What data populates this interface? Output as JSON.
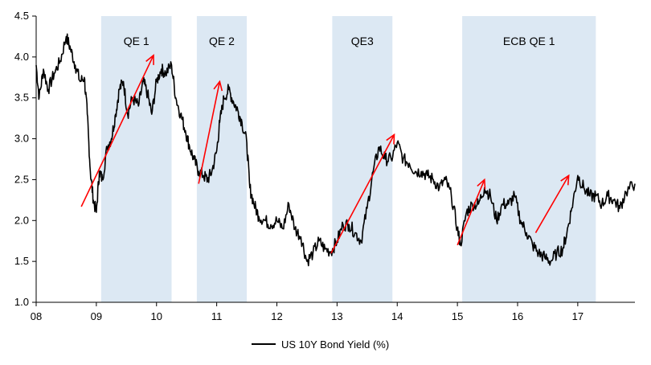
{
  "chart_data": {
    "type": "line",
    "title": "",
    "xlabel": "",
    "ylabel": "",
    "xlim": [
      8.0,
      17.95
    ],
    "ylim": [
      1.0,
      4.5
    ],
    "x_ticks": [
      {
        "value": 8,
        "label": "08"
      },
      {
        "value": 9,
        "label": "09"
      },
      {
        "value": 10,
        "label": "10"
      },
      {
        "value": 11,
        "label": "11"
      },
      {
        "value": 12,
        "label": "12"
      },
      {
        "value": 13,
        "label": "13"
      },
      {
        "value": 14,
        "label": "14"
      },
      {
        "value": 15,
        "label": "15"
      },
      {
        "value": 16,
        "label": "16"
      },
      {
        "value": 17,
        "label": "17"
      }
    ],
    "y_ticks": [
      {
        "value": 1.0,
        "label": "1.0"
      },
      {
        "value": 1.5,
        "label": "1.5"
      },
      {
        "value": 2.0,
        "label": "2.0"
      },
      {
        "value": 2.5,
        "label": "2.5"
      },
      {
        "value": 3.0,
        "label": "3.0"
      },
      {
        "value": 3.5,
        "label": "3.5"
      },
      {
        "value": 4.0,
        "label": "4.0"
      },
      {
        "value": 4.5,
        "label": "4.5"
      }
    ],
    "grid": false,
    "legend": {
      "placement": "bottom-center"
    },
    "shaded_periods": [
      {
        "label": "QE 1",
        "start": 9.08,
        "end": 10.25,
        "color": "#dce8f3"
      },
      {
        "label": "QE 2",
        "start": 10.67,
        "end": 11.5,
        "color": "#dce8f3"
      },
      {
        "label": "QE3",
        "start": 12.92,
        "end": 13.92,
        "color": "#dce8f3"
      },
      {
        "label": "ECB QE 1",
        "start": 15.08,
        "end": 17.3,
        "color": "#dce8f3"
      }
    ],
    "annotations": [
      {
        "type": "arrow",
        "x1": 8.75,
        "y1": 2.17,
        "x2": 9.95,
        "y2": 4.02,
        "color": "#ff0000"
      },
      {
        "type": "arrow",
        "x1": 10.7,
        "y1": 2.45,
        "x2": 11.05,
        "y2": 3.7,
        "color": "#ff0000"
      },
      {
        "type": "arrow",
        "x1": 12.9,
        "y1": 1.6,
        "x2": 13.95,
        "y2": 3.05,
        "color": "#ff0000"
      },
      {
        "type": "arrow",
        "x1": 15.0,
        "y1": 1.7,
        "x2": 15.45,
        "y2": 2.5,
        "color": "#ff0000"
      },
      {
        "type": "arrow",
        "x1": 16.3,
        "y1": 1.85,
        "x2": 16.85,
        "y2": 2.55,
        "color": "#ff0000"
      }
    ],
    "series": [
      {
        "name": "US 10Y Bond Yield (%)",
        "color": "#000000",
        "x": [
          8.0,
          8.05,
          8.12,
          8.2,
          8.3,
          8.4,
          8.5,
          8.57,
          8.65,
          8.73,
          8.8,
          8.85,
          8.9,
          8.95,
          9.0,
          9.05,
          9.1,
          9.18,
          9.25,
          9.32,
          9.38,
          9.45,
          9.52,
          9.6,
          9.7,
          9.78,
          9.85,
          9.92,
          10.0,
          10.08,
          10.15,
          10.25,
          10.32,
          10.4,
          10.48,
          10.55,
          10.62,
          10.7,
          10.78,
          10.85,
          10.92,
          11.0,
          11.05,
          11.12,
          11.2,
          11.28,
          11.35,
          11.42,
          11.5,
          11.55,
          11.62,
          11.7,
          11.8,
          11.9,
          12.0,
          12.1,
          12.2,
          12.3,
          12.4,
          12.5,
          12.6,
          12.7,
          12.8,
          12.9,
          13.0,
          13.1,
          13.2,
          13.3,
          13.4,
          13.5,
          13.6,
          13.7,
          13.8,
          13.9,
          14.0,
          14.1,
          14.2,
          14.3,
          14.4,
          14.5,
          14.6,
          14.7,
          14.8,
          14.9,
          15.0,
          15.05,
          15.15,
          15.25,
          15.35,
          15.45,
          15.55,
          15.65,
          15.75,
          15.85,
          15.95,
          16.05,
          16.15,
          16.25,
          16.35,
          16.45,
          16.55,
          16.65,
          16.75,
          16.82,
          16.9,
          17.0,
          17.1,
          17.2,
          17.3,
          17.4,
          17.5,
          17.6,
          17.7,
          17.8,
          17.95
        ],
        "y": [
          3.9,
          3.5,
          3.85,
          3.6,
          3.8,
          3.95,
          4.25,
          4.1,
          3.9,
          3.7,
          3.75,
          3.3,
          2.6,
          2.25,
          2.1,
          2.6,
          2.5,
          2.9,
          3.0,
          3.3,
          3.6,
          3.7,
          3.3,
          3.5,
          3.4,
          3.7,
          3.55,
          3.3,
          3.7,
          3.85,
          3.8,
          3.9,
          3.5,
          3.3,
          3.1,
          2.9,
          2.75,
          2.6,
          2.55,
          2.5,
          2.6,
          2.85,
          3.2,
          3.5,
          3.6,
          3.45,
          3.35,
          3.2,
          2.95,
          2.4,
          2.2,
          2.05,
          2.0,
          1.95,
          2.0,
          1.9,
          2.2,
          1.9,
          1.8,
          1.5,
          1.6,
          1.75,
          1.65,
          1.62,
          1.75,
          1.95,
          1.95,
          1.85,
          1.75,
          2.15,
          2.6,
          2.9,
          2.75,
          2.75,
          2.95,
          2.75,
          2.7,
          2.6,
          2.6,
          2.55,
          2.5,
          2.4,
          2.5,
          2.3,
          1.9,
          1.7,
          2.1,
          2.2,
          2.2,
          2.4,
          2.3,
          2.0,
          2.2,
          2.2,
          2.3,
          2.0,
          1.85,
          1.7,
          1.6,
          1.55,
          1.5,
          1.6,
          1.65,
          1.85,
          2.15,
          2.55,
          2.4,
          2.3,
          2.3,
          2.2,
          2.3,
          2.25,
          2.15,
          2.35,
          2.45
        ]
      }
    ]
  }
}
